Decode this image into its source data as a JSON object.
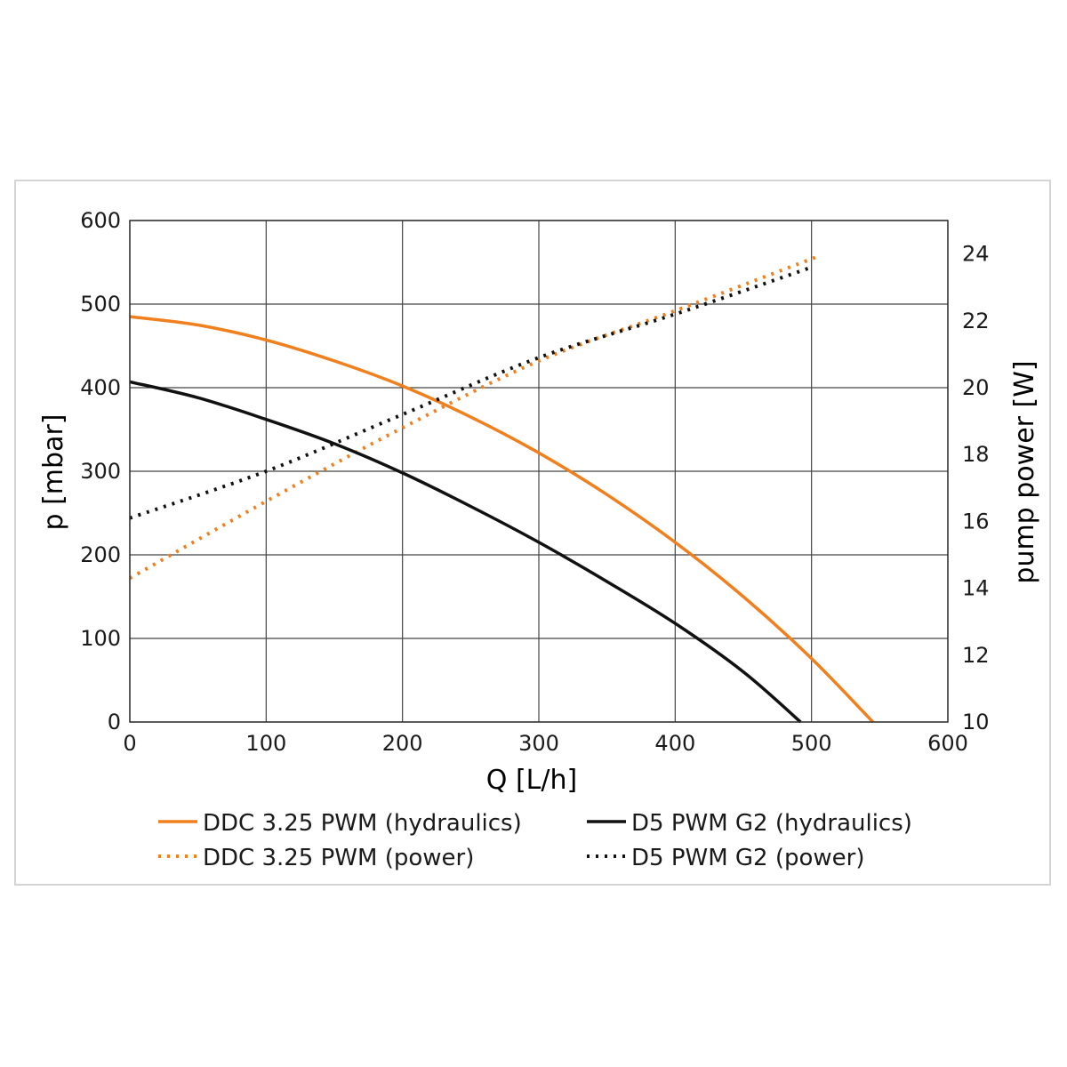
{
  "chart_data": {
    "type": "line",
    "title": "",
    "xlabel": "Q [L/h]",
    "ylabel": "p [mbar]",
    "y2label": "pump power [W]",
    "xlim": [
      0,
      600
    ],
    "ylim": [
      0,
      600
    ],
    "y2lim": [
      10,
      25
    ],
    "x_ticks": [
      "0",
      "100",
      "200",
      "300",
      "400",
      "500",
      "600"
    ],
    "y_ticks": [
      "0",
      "100",
      "200",
      "300",
      "400",
      "500",
      "600"
    ],
    "y2_ticks": [
      "10",
      "12",
      "14",
      "16",
      "18",
      "20",
      "22",
      "24"
    ],
    "grid": true,
    "legend_position": "bottom",
    "series": [
      {
        "name": "DDC 3.25 PWM (hydraulics)",
        "axis": "left",
        "color": "#f07f1e",
        "style": "solid",
        "x": [
          0,
          50,
          100,
          150,
          200,
          250,
          300,
          350,
          400,
          450,
          500,
          545
        ],
        "y": [
          485,
          475,
          457,
          432,
          402,
          365,
          322,
          272,
          215,
          150,
          76,
          0
        ]
      },
      {
        "name": "DDC 3.25 PWM (power)",
        "axis": "right",
        "color": "#f07f1e",
        "style": "dotted",
        "x": [
          0,
          100,
          200,
          300,
          400,
          503
        ],
        "y": [
          14.3,
          16.6,
          18.8,
          20.8,
          22.3,
          23.9
        ]
      },
      {
        "name": "D5 PWM G2 (hydraulics)",
        "axis": "left",
        "color": "#111111",
        "style": "solid",
        "x": [
          0,
          50,
          100,
          150,
          200,
          250,
          300,
          350,
          400,
          450,
          492
        ],
        "y": [
          407,
          388,
          362,
          333,
          298,
          258,
          215,
          168,
          118,
          60,
          0
        ]
      },
      {
        "name": "D5 PWM G2 (power)",
        "axis": "right",
        "color": "#111111",
        "style": "dotted",
        "x": [
          0,
          100,
          200,
          300,
          400,
          500
        ],
        "y": [
          16.1,
          17.5,
          19.2,
          20.9,
          22.2,
          23.6
        ]
      }
    ]
  }
}
